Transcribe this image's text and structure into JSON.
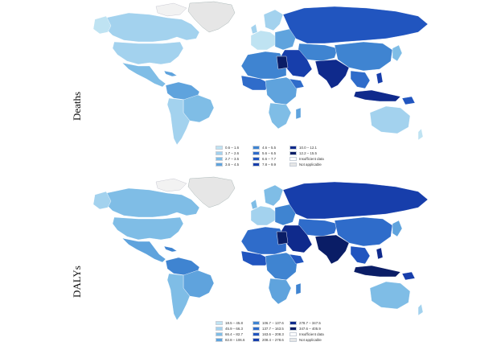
{
  "colors": {
    "land_na": "#e6e6e6",
    "insufficient": "#ffffff",
    "scale": [
      "#bfe3f2",
      "#a3d2ee",
      "#7fbde6",
      "#5fa3dd",
      "#3f84d1",
      "#2f6cca",
      "#2155bf",
      "#173eab",
      "#0f2a8c",
      "#0a1d66"
    ]
  },
  "panels": [
    {
      "id": "deaths",
      "label": "Deaths",
      "legend": [
        {
          "text": "0.6 – 1.6",
          "color": "#bfe3f2"
        },
        {
          "text": "1.7 – 2.6",
          "color": "#a3d2ee"
        },
        {
          "text": "2.7 – 3.5",
          "color": "#7fbde6"
        },
        {
          "text": "3.6 – 4.5",
          "color": "#5fa3dd"
        },
        {
          "text": "4.6 – 5.5",
          "color": "#3f84d1"
        },
        {
          "text": "5.6 – 6.5",
          "color": "#2f6cca"
        },
        {
          "text": "6.6 – 7.7",
          "color": "#2155bf"
        },
        {
          "text": "7.8 – 9.9",
          "color": "#173eab"
        },
        {
          "text": "10.0 – 12.1",
          "color": "#0f2a8c"
        },
        {
          "text": "12.2 – 15.5",
          "color": "#0a1d66"
        },
        {
          "text": "Insufficient data",
          "color": "#ffffff"
        },
        {
          "text": "Not applicable",
          "color": "#e6e6e6"
        }
      ]
    },
    {
      "id": "dalys",
      "label": "DALYs",
      "legend": [
        {
          "text": "18.5 – 45.8",
          "color": "#bfe3f2"
        },
        {
          "text": "45.9 – 66.3",
          "color": "#a3d2ee"
        },
        {
          "text": "66.4 – 82.7",
          "color": "#7fbde6"
        },
        {
          "text": "82.8 – 106.6",
          "color": "#5fa3dd"
        },
        {
          "text": "106.7 – 137.6",
          "color": "#3f84d1"
        },
        {
          "text": "137.7 – 163.5",
          "color": "#2f6cca"
        },
        {
          "text": "163.6 – 208.3",
          "color": "#2155bf"
        },
        {
          "text": "208.4 – 278.6",
          "color": "#173eab"
        },
        {
          "text": "278.7 – 347.5",
          "color": "#0f2a8c"
        },
        {
          "text": "347.6 – 405.9",
          "color": "#0a1d66"
        },
        {
          "text": "Insufficient data",
          "color": "#ffffff"
        },
        {
          "text": "Not applicable",
          "color": "#e6e6e6"
        }
      ]
    }
  ]
}
